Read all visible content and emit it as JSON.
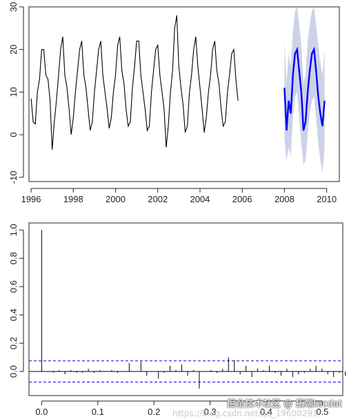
{
  "chart_data": [
    {
      "type": "line",
      "title": "",
      "xlabel": "",
      "ylabel": "",
      "xlim": [
        1995.9,
        2010.6
      ],
      "ylim": [
        -11,
        30
      ],
      "x_ticks": [
        1996,
        1998,
        2000,
        2002,
        2004,
        2006,
        2008,
        2010
      ],
      "y_ticks": [
        -10,
        0,
        10,
        20,
        30
      ],
      "grid": false,
      "series": [
        {
          "role": "observed",
          "color": "#000000",
          "x_start": 1996.0,
          "step_years": 0.1,
          "values": [
            8.5,
            3.0,
            2.5,
            10,
            13,
            20,
            20,
            14,
            13,
            8,
            -3.5,
            3,
            8,
            14,
            20,
            23,
            14,
            11,
            6,
            0,
            4,
            10,
            15,
            20,
            22,
            14,
            11,
            6,
            1,
            3,
            10,
            15,
            20,
            22,
            14,
            10,
            6,
            1.5,
            4,
            10,
            14,
            21,
            23,
            15,
            12,
            6,
            2,
            3,
            11,
            16,
            22,
            22,
            14,
            10,
            6,
            1,
            2,
            10,
            15,
            20,
            21,
            14,
            10,
            6,
            -3,
            2,
            10,
            15,
            25,
            28,
            16,
            11,
            7,
            0.5,
            2,
            10,
            14,
            20,
            23,
            16,
            11,
            6,
            0.5,
            4,
            10,
            14,
            20,
            22,
            15,
            12,
            6,
            2,
            3,
            10,
            14,
            19,
            20,
            13,
            8
          ]
        },
        {
          "role": "forecast",
          "color": "#0000ff",
          "x_start": 2008.0,
          "step_years": 0.1,
          "values": [
            11,
            1,
            8,
            5,
            14,
            19,
            20,
            15,
            10,
            1,
            3,
            10,
            15,
            19,
            20,
            15,
            9,
            5,
            2,
            8
          ]
        },
        {
          "role": "prediction-interval",
          "color": "#c8cde6",
          "x_start": 2008.0,
          "step_years": 0.1,
          "lower": [
            -1,
            -6,
            -3,
            -5,
            4,
            9,
            10,
            4,
            -2,
            -7,
            -6,
            0,
            5,
            8,
            9,
            4,
            -2,
            -6,
            -9,
            -3
          ],
          "upper": [
            22,
            12,
            19,
            16,
            24,
            29,
            30,
            26,
            21,
            12,
            14,
            22,
            26,
            29,
            30,
            26,
            21,
            17,
            14,
            20
          ]
        }
      ]
    },
    {
      "type": "bar",
      "title": "",
      "xlabel": "",
      "ylabel": "",
      "xlim": [
        -0.0226,
        0.5364
      ],
      "ylim": [
        -0.17,
        1.05
      ],
      "x_ticks": [
        "0.0",
        "0.1",
        "0.2",
        "0.3",
        "0.4",
        "0.5"
      ],
      "x_tick_values": [
        0,
        0.1,
        0.2,
        0.3,
        0.4,
        0.5
      ],
      "y_ticks": [
        "0.0",
        "0.2",
        "0.4",
        "0.6",
        "0.8",
        "1.0"
      ],
      "y_tick_values": [
        0,
        0.2,
        0.4,
        0.6,
        0.8,
        1.0
      ],
      "confidence_band": 0.075,
      "band_color": "#0000ff",
      "grid": false,
      "lag_step": 0.0104,
      "values": [
        1.0,
        0.0,
        -0.01,
        0.01,
        -0.02,
        0.01,
        -0.01,
        -0.01,
        0.02,
        -0.01,
        0.01,
        0.0,
        0.01,
        -0.01,
        0.0,
        0.06,
        0.0,
        0.07,
        -0.03,
        0.0,
        -0.05,
        -0.01,
        0.04,
        0.01,
        0.05,
        -0.03,
        0.01,
        -0.12,
        0.0,
        0.01,
        -0.01,
        0.02,
        0.1,
        0.08,
        -0.02,
        0.04,
        -0.04,
        0.02,
        0.01,
        0.04,
        -0.01,
        -0.03,
        0.02,
        -0.04,
        -0.02,
        -0.01,
        0.02,
        0.04,
        0.02,
        -0.02,
        -0.04,
        -0.01,
        -0.03,
        0.0
      ]
    }
  ],
  "watermark": {
    "main": "掘金技术社区 @ 拓端tecdat",
    "faint": "https://blog.csdn.net/qq_19600291"
  }
}
